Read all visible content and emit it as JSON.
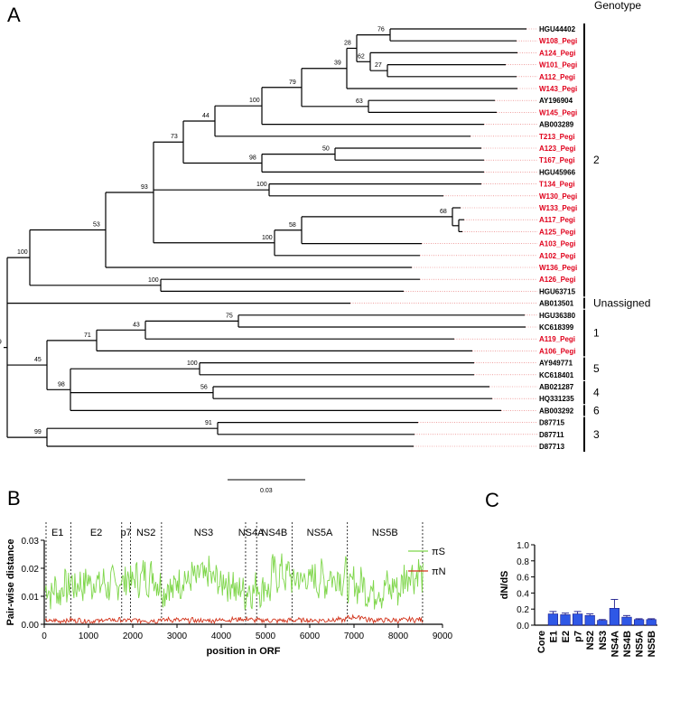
{
  "panel_a": {
    "label": "A",
    "header": "Genotype",
    "scale_bar_label": "0.03",
    "taxa": [
      {
        "name": "HGU44402",
        "red": false
      },
      {
        "name": "W108_Pegi",
        "red": true
      },
      {
        "name": "A124_Pegi",
        "red": true
      },
      {
        "name": "W101_Pegi",
        "red": true
      },
      {
        "name": "A112_Pegi",
        "red": true
      },
      {
        "name": "W143_Pegi",
        "red": true
      },
      {
        "name": "AY196904",
        "red": false
      },
      {
        "name": "W145_Pegi",
        "red": true
      },
      {
        "name": "AB003289",
        "red": false
      },
      {
        "name": "T213_Pegi",
        "red": true
      },
      {
        "name": "A123_Pegi",
        "red": true
      },
      {
        "name": "T167_Pegi",
        "red": true
      },
      {
        "name": "HGU45966",
        "red": false
      },
      {
        "name": "T134_Pegi",
        "red": true
      },
      {
        "name": "W130_Pegi",
        "red": true
      },
      {
        "name": "W133_Pegi",
        "red": true
      },
      {
        "name": "A117_Pegi",
        "red": true
      },
      {
        "name": "A125_Pegi",
        "red": true
      },
      {
        "name": "A103_Pegi",
        "red": true
      },
      {
        "name": "A102_Pegi",
        "red": true
      },
      {
        "name": "W136_Pegi",
        "red": true
      },
      {
        "name": "A126_Pegi",
        "red": true
      },
      {
        "name": "HGU63715",
        "red": false
      },
      {
        "name": "AB013501",
        "red": false
      },
      {
        "name": "HGU36380",
        "red": false
      },
      {
        "name": "KC618399",
        "red": false
      },
      {
        "name": "A119_Pegi",
        "red": true
      },
      {
        "name": "A106_Pegi",
        "red": true
      },
      {
        "name": "AY949771",
        "red": false
      },
      {
        "name": "KC618401",
        "red": false
      },
      {
        "name": "AB021287",
        "red": false
      },
      {
        "name": "HQ331235",
        "red": false
      },
      {
        "name": "AB003292",
        "red": false
      },
      {
        "name": "D87715",
        "red": false
      },
      {
        "name": "D87711",
        "red": false
      },
      {
        "name": "D87713",
        "red": false
      }
    ],
    "bootstrap_values": [
      "76",
      "28",
      "62",
      "27",
      "39",
      "63",
      "79",
      "100",
      "44",
      "73",
      "50",
      "98",
      "93",
      "100",
      "68",
      "100",
      "58",
      "100",
      "53",
      "100",
      "100",
      "99",
      "99",
      "75",
      "43",
      "99",
      "71",
      "100",
      "45",
      "56",
      "98",
      "99",
      "91",
      "100"
    ],
    "genotype_groups": [
      {
        "label": "2",
        "first": "HGU44402",
        "last": "HGU63715"
      },
      {
        "label": "Unassigned",
        "first": "AB013501",
        "last": "AB013501"
      },
      {
        "label": "1",
        "first": "HGU36380",
        "last": "A106_Pegi"
      },
      {
        "label": "5",
        "first": "AY949771",
        "last": "KC618401"
      },
      {
        "label": "4",
        "first": "AB021287",
        "last": "HQ331235"
      },
      {
        "label": "6",
        "first": "AB003292",
        "last": "AB003292"
      },
      {
        "label": "3",
        "first": "D87715",
        "last": "D87713"
      }
    ],
    "colors": {
      "highlight": "#e0001b",
      "default": "#000000",
      "leader": "#e66b6b"
    }
  },
  "chart_data": [
    {
      "type": "line",
      "panel": "B",
      "xlabel": "position in ORF",
      "ylabel": "Pair-wise distance",
      "xlim": [
        0,
        9000
      ],
      "ylim": [
        0,
        0.03
      ],
      "xticks": [
        "0",
        "1000",
        "2000",
        "3000",
        "4000",
        "5000",
        "6000",
        "7000",
        "8000",
        "9000"
      ],
      "yticks": [
        "0.00",
        "0.01",
        "0.02",
        "0.03"
      ],
      "regions": [
        "E1",
        "E2",
        "p7",
        "NS2",
        "NS3",
        "NS4A",
        "NS4B",
        "NS5A",
        "NS5B"
      ],
      "boundaries": [
        0,
        600,
        1750,
        1950,
        2650,
        4550,
        4800,
        5600,
        6850,
        8550
      ],
      "series": [
        {
          "name": "πS",
          "color": "#7ed64a",
          "means": [
            0.012,
            0.014,
            0.015,
            0.014,
            0.016,
            0.017,
            0.013,
            0.016,
            0.017,
            0.015,
            0.012,
            0.013,
            0.018,
            0.016,
            0.016,
            0.017,
            0.014,
            0.012,
            0.013,
            0.018
          ],
          "amplitude": 0.006
        },
        {
          "name": "πN",
          "color": "#d2331b",
          "means": [
            0.0012,
            0.0014,
            0.0012,
            0.0015,
            0.0014,
            0.0013,
            0.0016,
            0.0014,
            0.0013,
            0.0016,
            0.0018,
            0.0014,
            0.0013,
            0.0015,
            0.0014,
            0.0016,
            0.0025,
            0.0015,
            0.0014,
            0.0016
          ],
          "amplitude": 0.0008
        }
      ]
    },
    {
      "type": "bar",
      "panel": "C",
      "ylabel": "dN/dS",
      "ylim": [
        0,
        1.0
      ],
      "yticks": [
        "0.0",
        "0.2",
        "0.4",
        "0.6",
        "0.8",
        "1.0"
      ],
      "categories": [
        "Core",
        "E1",
        "E2",
        "p7",
        "NS2",
        "NS3",
        "NS4A",
        "NS4B",
        "NS5A",
        "NS5B"
      ],
      "values": [
        0,
        0.14,
        0.13,
        0.14,
        0.12,
        0.06,
        0.21,
        0.1,
        0.07,
        0.07
      ],
      "errors": [
        0,
        0.03,
        0.02,
        0.03,
        0.02,
        0.01,
        0.11,
        0.02,
        0.01,
        0.01
      ],
      "bar_color": "#2f58e6"
    }
  ],
  "panel_b": {
    "label": "B"
  },
  "panel_c": {
    "label": "C"
  }
}
